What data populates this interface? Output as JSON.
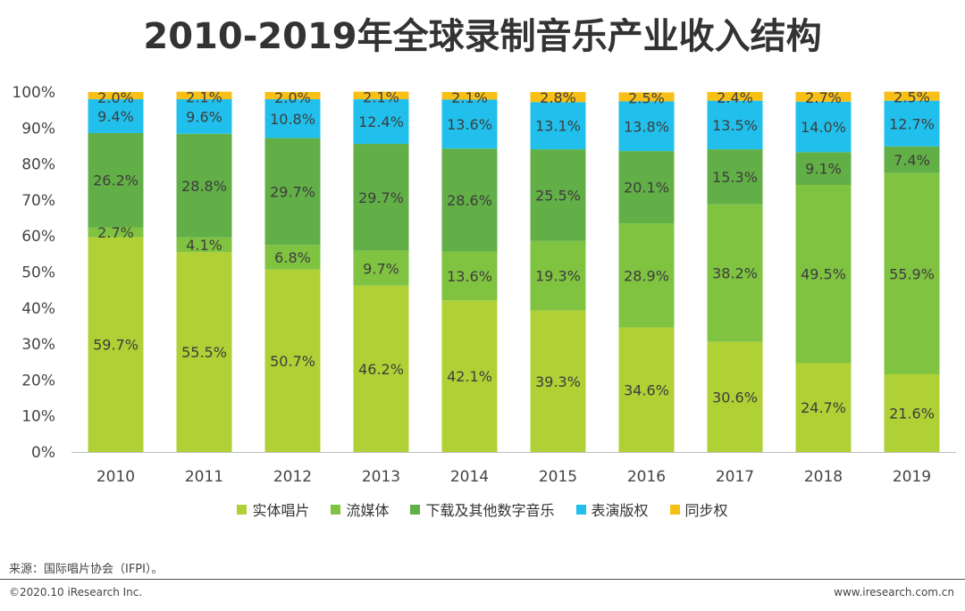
{
  "title": "2010-2019年全球录制音乐产业收入结构",
  "colors": {
    "physical": "#afd135",
    "streaming": "#80c341",
    "downloads": "#62af47",
    "performance": "#21c0ec",
    "sync": "#f8bf17"
  },
  "chart_data": {
    "type": "bar",
    "stacked": true,
    "title": "2010-2019年全球录制音乐产业收入结构",
    "categories": [
      "2010",
      "2011",
      "2012",
      "2013",
      "2014",
      "2015",
      "2016",
      "2017",
      "2018",
      "2019"
    ],
    "ylim": [
      0,
      100
    ],
    "yticks": [
      "0%",
      "10%",
      "20%",
      "30%",
      "40%",
      "50%",
      "60%",
      "70%",
      "80%",
      "90%",
      "100%"
    ],
    "legend_position": "bottom",
    "grid": false,
    "series": [
      {
        "name": "实体唱片",
        "color": "#afd135",
        "values": [
          59.7,
          55.5,
          50.7,
          46.2,
          42.1,
          39.3,
          34.6,
          30.6,
          24.7,
          21.6
        ],
        "labels": [
          "59.7%",
          "55.5%",
          "50.7%",
          "46.2%",
          "42.1%",
          "39.3%",
          "34.6%",
          "30.6%",
          "24.7%",
          "21.6%"
        ]
      },
      {
        "name": "流媒体",
        "color": "#80c341",
        "values": [
          2.7,
          4.1,
          6.8,
          9.7,
          13.6,
          19.3,
          28.9,
          38.2,
          49.5,
          55.9
        ],
        "labels": [
          "2.7%",
          "4.1%",
          "6.8%",
          "9.7%",
          "13.6%",
          "19.3%",
          "28.9%",
          "38.2%",
          "49.5%",
          "55.9%"
        ]
      },
      {
        "name": "下载及其他数字音乐",
        "color": "#62af47",
        "values": [
          26.2,
          28.8,
          29.7,
          29.7,
          28.6,
          25.5,
          20.1,
          15.3,
          9.1,
          7.4
        ],
        "labels": [
          "26.2%",
          "28.8%",
          "29.7%",
          "29.7%",
          "28.6%",
          "25.5%",
          "20.1%",
          "15.3%",
          "9.1%",
          "7.4%"
        ]
      },
      {
        "name": "表演版权",
        "color": "#21c0ec",
        "values": [
          9.4,
          9.6,
          10.8,
          12.4,
          13.6,
          13.1,
          13.8,
          13.5,
          14.0,
          12.7
        ],
        "labels": [
          "9.4%",
          "9.6%",
          "10.8%",
          "12.4%",
          "13.6%",
          "13.1%",
          "13.8%",
          "13.5%",
          "14.0%",
          "12.7%"
        ]
      },
      {
        "name": "同步权",
        "color": "#f8bf17",
        "values": [
          2.0,
          2.1,
          2.0,
          2.1,
          2.1,
          2.8,
          2.5,
          2.4,
          2.7,
          2.5
        ],
        "labels": [
          "2.0%",
          "2.1%",
          "2.0%",
          "2.1%",
          "2.1%",
          "2.8%",
          "2.5%",
          "2.4%",
          "2.7%",
          "2.5%"
        ]
      }
    ]
  },
  "footer": {
    "source": "来源：国际唱片协会（IFPI）。",
    "copyright": "©2020.10 iResearch Inc.",
    "url": "www.iresearch.com.cn"
  }
}
